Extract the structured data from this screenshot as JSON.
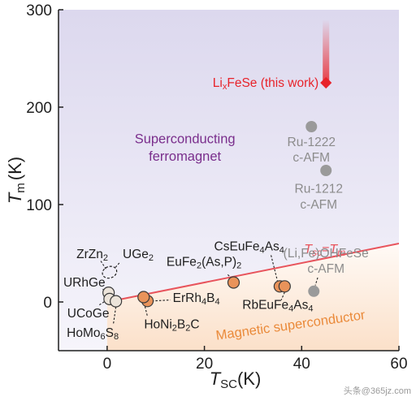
{
  "chart_data": {
    "type": "scatter",
    "title": "",
    "xlabel": {
      "main": "T",
      "sub": "SC",
      "unit": "(K)"
    },
    "ylabel": {
      "main": "T",
      "sub": "m",
      "unit": "(K)"
    },
    "xlim": [
      -10,
      60
    ],
    "ylim": [
      -50,
      300
    ],
    "x_ticks": [
      "0",
      "20",
      "40",
      "60"
    ],
    "y_ticks": [
      "0",
      "100",
      "200",
      "300"
    ],
    "x_tick_values": [
      0,
      20,
      40,
      60
    ],
    "y_tick_values": [
      0,
      100,
      200,
      300
    ],
    "grid": false,
    "regions": {
      "superconducting_ferromagnet": {
        "label_line1": "Superconducting",
        "label_line2": "ferromagnet",
        "color": "#e3dff0"
      },
      "magnetic_superconductor": {
        "label": "Magnetic superconductor",
        "color": "#fbe3d0"
      }
    },
    "diagonal_line": {
      "label_left": "T",
      "label_left_sub": "sc",
      "label_right": "=T",
      "label_right_sub": "m",
      "slope": 1,
      "color": "#e8545c"
    },
    "highlight": {
      "label_main": "Li",
      "label_sub": "x",
      "label_rest": "FeSe (this work)",
      "x": 45,
      "y": 225,
      "arrow_top": 290,
      "color": "#e8232a"
    },
    "series": [
      {
        "group": "gray",
        "color": "#9a9a9a",
        "points": [
          {
            "label": "Ru-1222 c-AFM",
            "x": 42,
            "y": 180
          },
          {
            "label": "Ru-1212 c-AFM",
            "x": 45,
            "y": 135
          },
          {
            "label": "(Li,Fe)OHFeSe c-AFM",
            "x": 42.5,
            "y": 11
          }
        ]
      },
      {
        "group": "light",
        "color": "#e8e0d6",
        "points": [
          {
            "label": "URhGe",
            "x": 0.3,
            "y": 9.5
          },
          {
            "label": "UCoGe",
            "x": 0.5,
            "y": 3
          },
          {
            "label": "HoMo6S8",
            "x": 1.8,
            "y": 0.7
          },
          {
            "label": "ZrZn2",
            "x": 0.2,
            "y": 28
          },
          {
            "label": "UGe2",
            "x": 0.8,
            "y": 33
          }
        ]
      },
      {
        "group": "orange",
        "color": "#e9935a",
        "points": [
          {
            "label": "ErRh4B4",
            "x": 8.3,
            "y": 1
          },
          {
            "label": "HoNi2B2C",
            "x": 7.5,
            "y": 5
          },
          {
            "label": "EuFe2(As,P)2",
            "x": 26,
            "y": 20
          },
          {
            "label": "CsEuFe4As4",
            "x": 35.5,
            "y": 16
          },
          {
            "label": "RbEuFe4As4",
            "x": 36.5,
            "y": 16
          }
        ]
      }
    ],
    "point_labels": {
      "ru1222": [
        "Ru-1222",
        "c-AFM"
      ],
      "ru1212": [
        "Ru-1212",
        "c-AFM"
      ],
      "lifeoh": [
        "(Li,Fe)OHFeSe",
        "c-AFM"
      ],
      "zrzn2": {
        "main": "ZrZn",
        "sub": "2"
      },
      "uge2": {
        "main": "UGe",
        "sub": "2"
      },
      "urhge": "URhGe",
      "ucoge": "UCoGe",
      "homo6s8": {
        "a": "HoMo",
        "b": "6",
        "c": "S",
        "d": "8"
      },
      "errh4b4": {
        "a": "ErRh",
        "b": "4",
        "c": "B",
        "d": "4"
      },
      "honi2b2c": {
        "a": "HoNi",
        "b": "2",
        "c": "B",
        "d": "2",
        "e": "C"
      },
      "eufe2asp2": {
        "a": "EuFe",
        "b": "2",
        "c": "(As,P)",
        "d": "2"
      },
      "cseufe4as4": {
        "a": "CsEuFe",
        "b": "4",
        "c": "As",
        "d": "4"
      },
      "rbeufe4as4": {
        "a": "RbEuFe",
        "b": "4",
        "c": "As",
        "d": "4"
      }
    },
    "watermark": "头条@365jz.com"
  },
  "colors": {
    "axis": "#1f1f1f",
    "gray_point": "#9a9a9a",
    "orange_point": "#e9935a",
    "light_point": "#ece4da",
    "highlight": "#e8232a"
  }
}
